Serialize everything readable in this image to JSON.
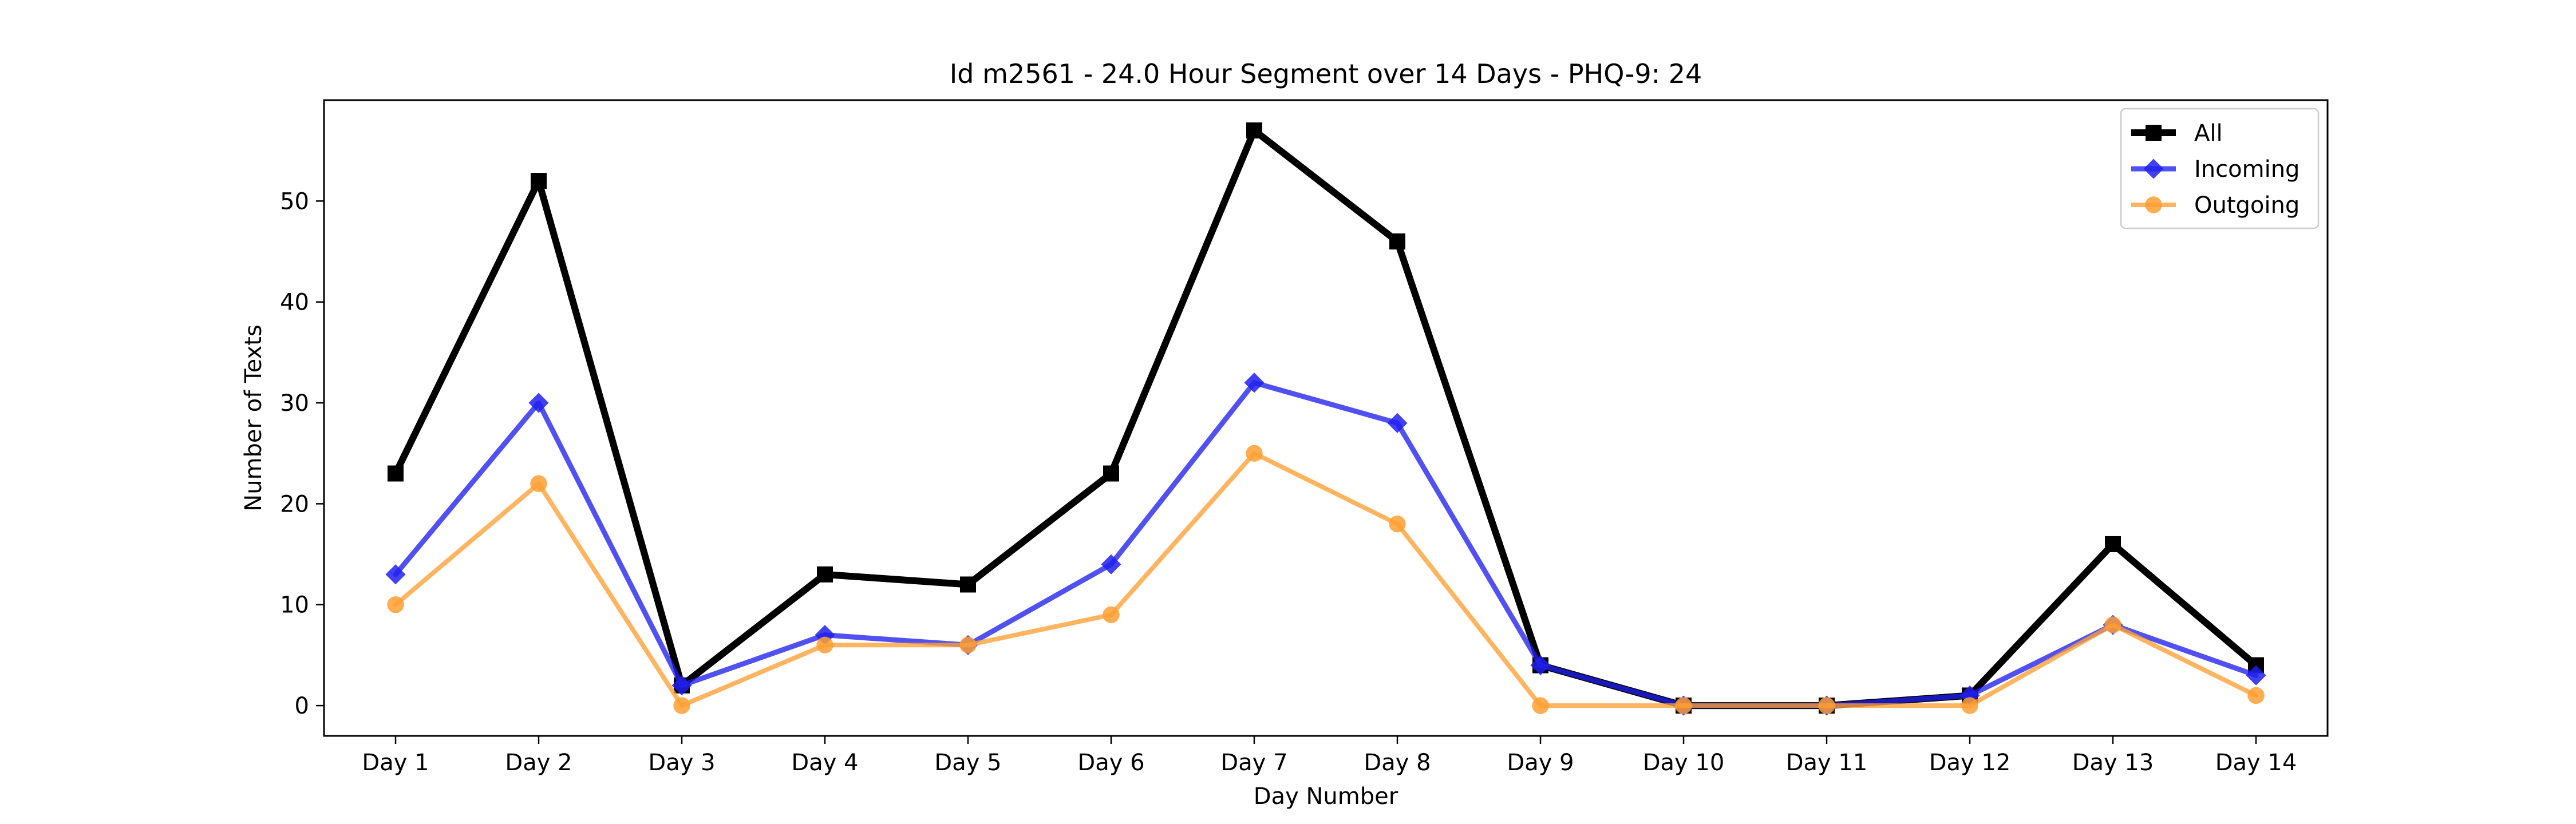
{
  "chart_data": {
    "type": "line",
    "title": "Id m2561 - 24.0 Hour Segment over 14 Days - PHQ-9: 24",
    "xlabel": "Day Number",
    "ylabel": "Number of Texts",
    "categories": [
      "Day 1",
      "Day 2",
      "Day 3",
      "Day 4",
      "Day 5",
      "Day 6",
      "Day 7",
      "Day 8",
      "Day 9",
      "Day 10",
      "Day 11",
      "Day 12",
      "Day 13",
      "Day 14"
    ],
    "ylim": [
      -3,
      60
    ],
    "yticks": [
      0,
      10,
      20,
      30,
      40,
      50
    ],
    "grid": false,
    "legend_position": "top-right",
    "series": [
      {
        "name": "All",
        "color": "#000000",
        "marker": "square",
        "values": [
          23,
          52,
          2,
          13,
          12,
          23,
          57,
          46,
          4,
          0,
          0,
          1,
          16,
          4
        ]
      },
      {
        "name": "Incoming",
        "color": "#2020f0",
        "marker": "diamond",
        "values": [
          13,
          30,
          2,
          7,
          6,
          14,
          32,
          28,
          4,
          0,
          0,
          1,
          8,
          3
        ]
      },
      {
        "name": "Outgoing",
        "color": "#ff9f33",
        "marker": "circle",
        "values": [
          10,
          22,
          0,
          6,
          6,
          9,
          25,
          18,
          0,
          0,
          0,
          0,
          8,
          1
        ]
      }
    ]
  }
}
